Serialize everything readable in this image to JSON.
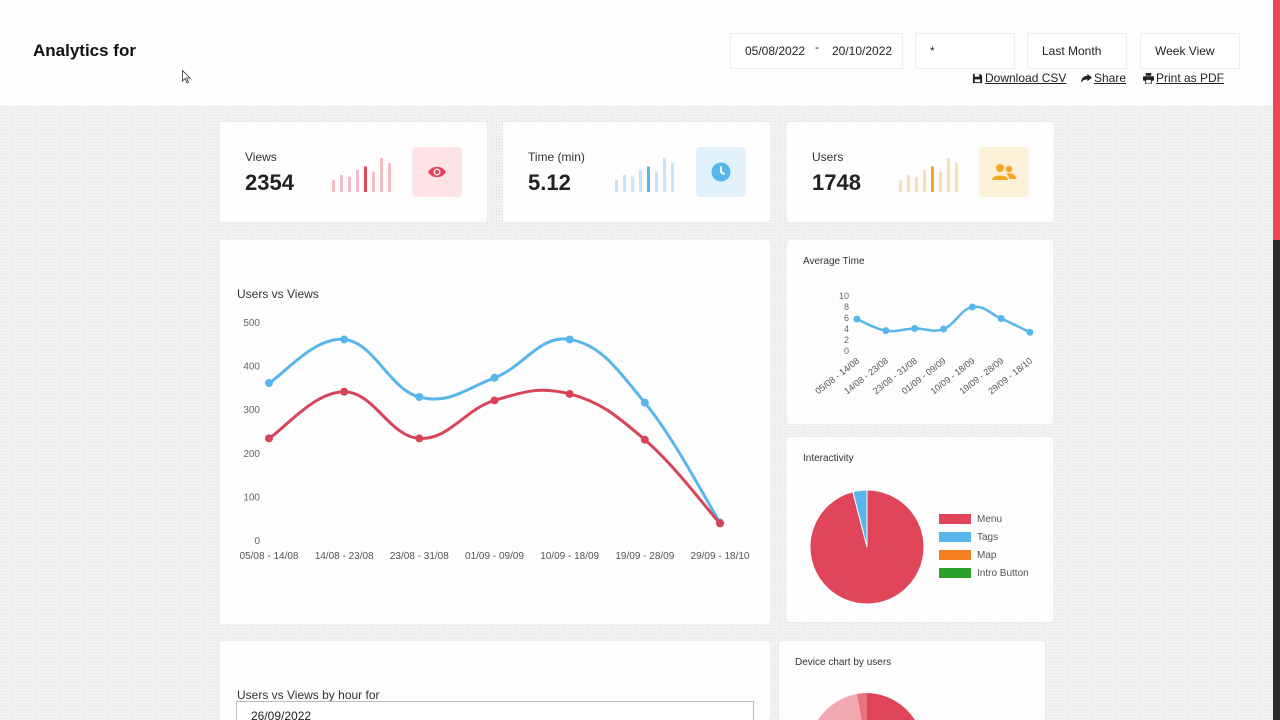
{
  "header": {
    "title": "Analytics for",
    "date_from": "05/08/2022",
    "date_sep": "-",
    "date_to": "20/10/2022",
    "filter_value": "*",
    "period": "Last Month",
    "view": "Week View",
    "actions": {
      "download": "Download CSV",
      "share": "Share",
      "print": "Print as PDF"
    }
  },
  "kpis": [
    {
      "label": "Views",
      "value": "2354",
      "color": "#e0455a",
      "bg": "#fbe3e6",
      "icon": "eye-icon"
    },
    {
      "label": "Time (min)",
      "value": "5.12",
      "color": "#58b6ec",
      "bg": "#e1f1fb",
      "icon": "clock-icon"
    },
    {
      "label": "Users",
      "value": "1748",
      "color": "#f5a623",
      "bg": "#fdf0d8",
      "icon": "users-icon"
    }
  ],
  "colors": {
    "views": "#58b6ec",
    "users": "#d8455a",
    "menu": "#e0455a",
    "tags": "#58b6ec",
    "map": "#f57f20",
    "intro": "#2ca02c"
  },
  "main_chart": {
    "title": "Users vs Views",
    "chart_data": {
      "type": "line",
      "categories": [
        "05/08 - 14/08",
        "14/08 - 23/08",
        "23/08 - 31/08",
        "01/09 - 09/09",
        "10/09 - 18/09",
        "19/09 - 28/09",
        "29/09 - 18/10"
      ],
      "series": [
        {
          "values": [
            360,
            460,
            328,
            372,
            460,
            315,
            40
          ]
        },
        {
          "values": [
            233,
            340,
            233,
            320,
            335,
            230,
            38
          ]
        }
      ],
      "yticks": [
        "0",
        "100",
        "200",
        "300",
        "400",
        "500"
      ],
      "ylim": [
        0,
        500
      ],
      "grid": false
    }
  },
  "avg_time": {
    "title": "Average Time",
    "chart_data": {
      "type": "line",
      "categories": [
        "05/08 - 14/08",
        "14/08 - 23/08",
        "23/08 - 31/08",
        "01/09 - 09/09",
        "10/09 - 18/09",
        "19/09 - 28/09",
        "29/09 - 18/10"
      ],
      "series": [
        {
          "values": [
            5.8,
            3.7,
            4.1,
            4.0,
            8.0,
            5.9,
            3.4
          ]
        }
      ],
      "yticks": [
        "0",
        "2",
        "4",
        "6",
        "8",
        "10"
      ],
      "ylim": [
        0,
        10
      ]
    }
  },
  "interactivity": {
    "title": "Interactivity",
    "chart_data": {
      "type": "pie",
      "labels": [
        "Menu",
        "Tags",
        "Map",
        "Intro Button"
      ],
      "values": [
        96,
        4,
        0,
        0
      ]
    }
  },
  "hourly": {
    "title": "Users vs Views by hour for",
    "date": "26/09/2022"
  },
  "device": {
    "title": "Device chart by users"
  }
}
